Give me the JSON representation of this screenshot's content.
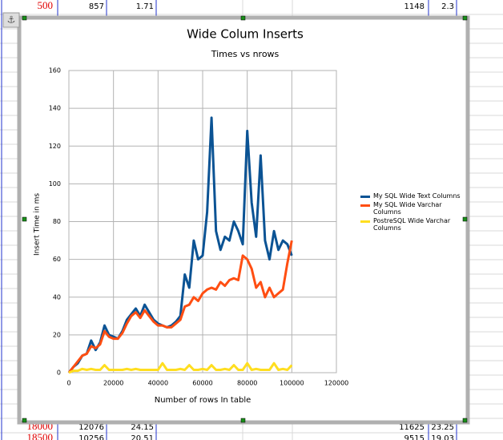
{
  "spreadsheet": {
    "rows": [
      [
        "500",
        857,
        1.71,
        1148,
        2.3
      ],
      [
        "18000",
        12076,
        24.15,
        11625,
        23.25
      ],
      [
        "18500",
        10256,
        20.51,
        9515,
        19.03
      ]
    ]
  },
  "chart_data": {
    "type": "line",
    "title": "Wide Colum Inserts",
    "subtitle": "Times vs nrows",
    "x_label": "Number of rows In table",
    "y_label": "Insert Time in ms",
    "x": [
      0,
      2000,
      4000,
      6000,
      8000,
      10000,
      12000,
      14000,
      16000,
      18000,
      20000,
      22000,
      24000,
      26000,
      28000,
      30000,
      32000,
      34000,
      36000,
      38000,
      40000,
      42000,
      44000,
      46000,
      48000,
      50000,
      52000,
      54000,
      56000,
      58000,
      60000,
      62000,
      64000,
      66000,
      68000,
      70000,
      72000,
      74000,
      76000,
      78000,
      80000,
      82000,
      84000,
      86000,
      88000,
      90000,
      92000,
      94000,
      96000,
      98000,
      100000
    ],
    "series": [
      {
        "name": "My SQL Wide Text Columns",
        "color": "#0b5394",
        "values": [
          0,
          3,
          5,
          9,
          10,
          17,
          12,
          16,
          25,
          20,
          19,
          18,
          22,
          28,
          31,
          34,
          30,
          36,
          32,
          28,
          26,
          25,
          24,
          25,
          27,
          30,
          52,
          45,
          70,
          60,
          62,
          85,
          135,
          75,
          65,
          72,
          70,
          80,
          75,
          68,
          128,
          90,
          72,
          115,
          70,
          60,
          75,
          65,
          70,
          68,
          62
        ]
      },
      {
        "name": "My SQL Wide Varchar Columns",
        "color": "#ff4e12",
        "values": [
          0,
          3,
          6,
          9,
          10,
          14,
          13,
          15,
          22,
          19,
          18,
          18,
          21,
          26,
          30,
          32,
          29,
          33,
          30,
          27,
          25,
          25,
          24,
          24,
          26,
          28,
          35,
          36,
          40,
          38,
          42,
          44,
          45,
          44,
          48,
          46,
          49,
          50,
          49,
          62,
          60,
          55,
          45,
          48,
          40,
          45,
          40,
          42,
          44,
          58,
          70
        ]
      },
      {
        "name": "PostreSQL Wide Varchar Columns",
        "color": "#ffde20",
        "values": [
          0,
          1,
          1,
          2,
          1.5,
          2,
          1.5,
          1.5,
          4,
          1.5,
          1.5,
          1.5,
          1.5,
          2,
          1.5,
          2,
          1.5,
          1.5,
          1.5,
          1.5,
          1.5,
          5,
          1.5,
          1.5,
          1.5,
          2,
          1.5,
          4,
          1.5,
          1.5,
          2,
          1.5,
          4,
          1.5,
          1.5,
          2,
          1.5,
          4,
          1.5,
          1.5,
          5,
          1.5,
          2,
          1.5,
          1.5,
          1.5,
          5,
          1.5,
          2,
          1.5,
          4
        ]
      }
    ],
    "xlim": [
      0,
      120000
    ],
    "xticks": [
      0,
      20000,
      40000,
      60000,
      80000,
      100000,
      120000
    ],
    "ylim": [
      0,
      160
    ],
    "yticks": [
      0,
      20,
      40,
      60,
      80,
      100,
      120,
      140,
      160
    ],
    "grid": true,
    "legend": "right"
  }
}
